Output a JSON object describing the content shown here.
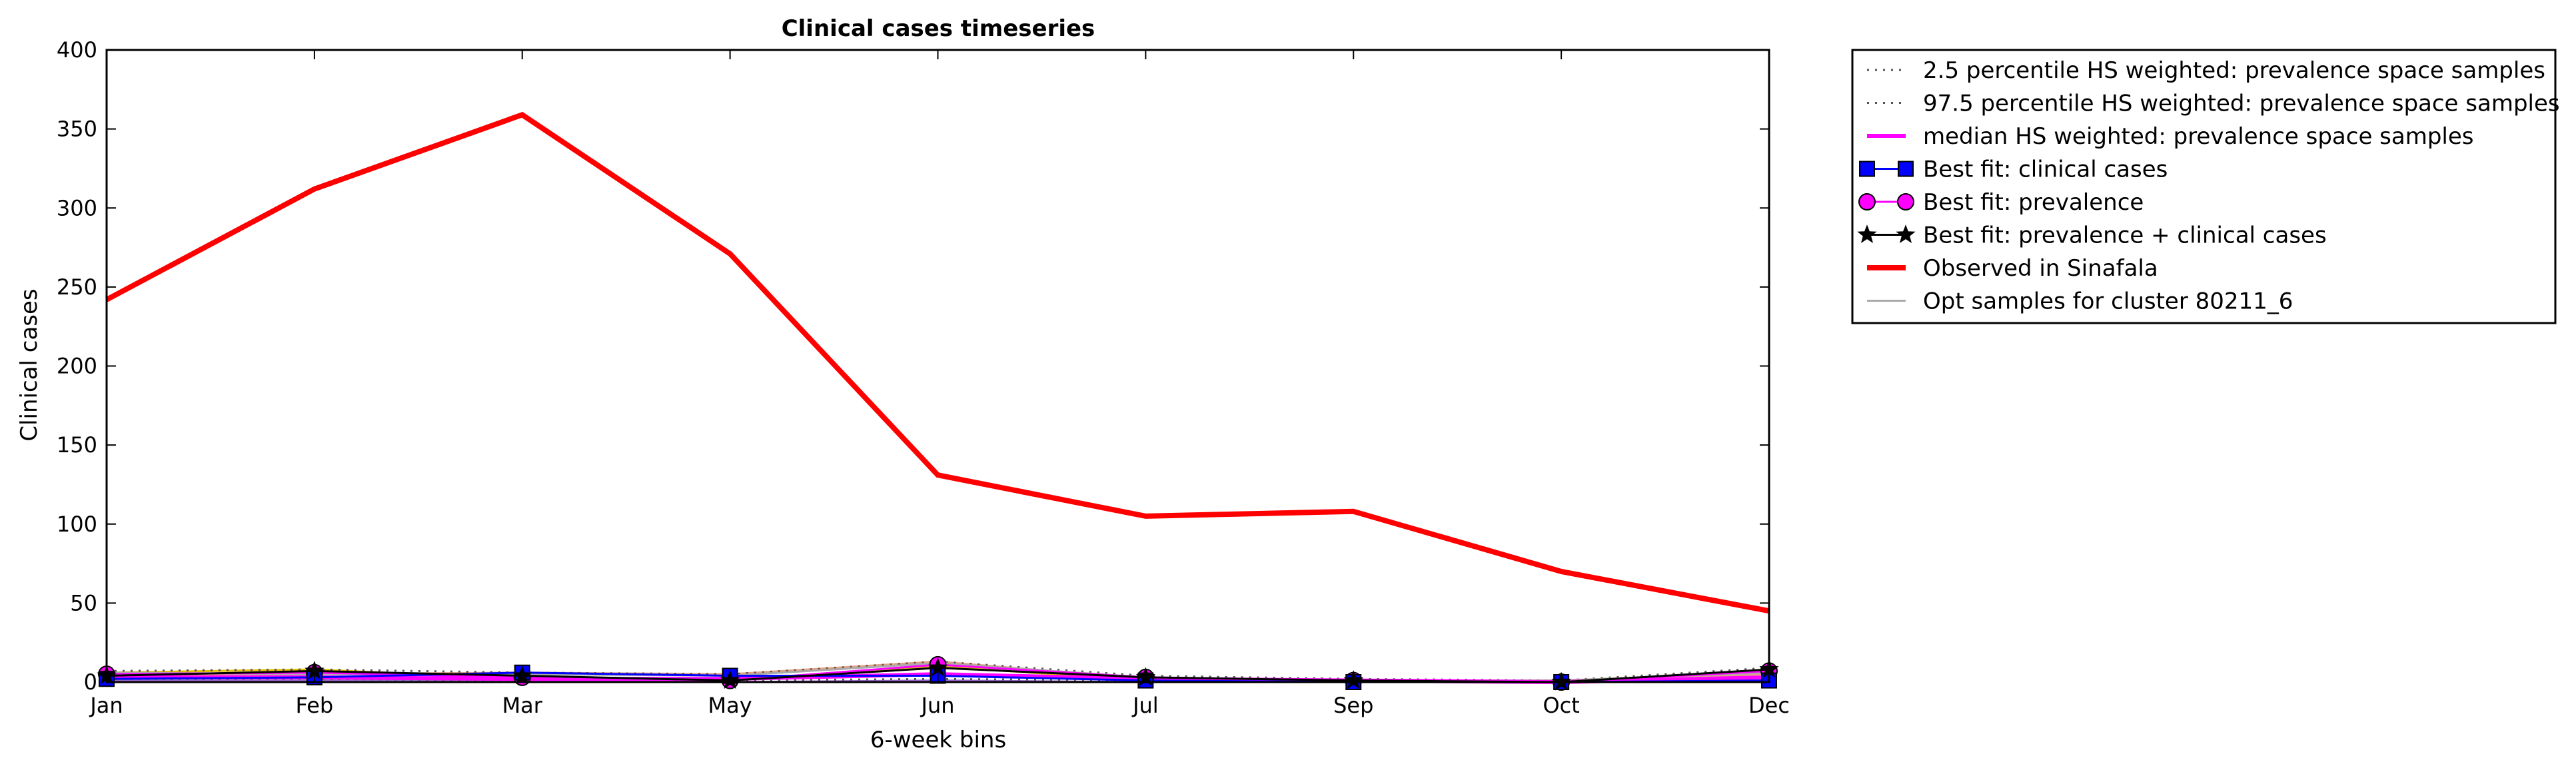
{
  "chart_data": {
    "type": "line",
    "title": "Clinical cases timeseries",
    "xlabel": "6-week bins",
    "ylabel": "Clinical cases",
    "categories": [
      "Jan",
      "Feb",
      "Mar",
      "May",
      "Jun",
      "Jul",
      "Sep",
      "Oct",
      "Dec"
    ],
    "ylim": [
      0,
      400
    ],
    "yticks": [
      0,
      50,
      100,
      150,
      200,
      250,
      300,
      350,
      400
    ],
    "grid": false,
    "legend_position": "outside-right-top",
    "series": [
      {
        "name": "2.5 percentile HS weighted: prevalence space samples",
        "style": "dotted",
        "color": "#555555",
        "values": [
          2,
          2,
          1,
          1,
          2,
          1,
          0,
          0,
          1
        ]
      },
      {
        "name": "97.5 percentile HS weighted: prevalence space samples",
        "style": "dotted",
        "color": "#555555",
        "values": [
          7,
          8,
          6,
          5,
          13,
          4,
          2,
          1,
          9
        ]
      },
      {
        "name": "median HS weighted: prevalence space samples",
        "style": "solid",
        "color": "#ff00ff",
        "values": [
          3,
          3,
          2,
          2,
          5,
          2,
          1,
          0,
          3
        ]
      },
      {
        "name": "Best fit: clinical cases",
        "style": "solid",
        "marker": "square",
        "color": "#0000ff",
        "values": [
          2,
          3,
          6,
          4,
          4,
          1,
          0,
          0,
          1
        ]
      },
      {
        "name": "Best fit: prevalence",
        "style": "solid",
        "marker": "circle",
        "color": "#ff00ff",
        "values": [
          5,
          6,
          3,
          1,
          11,
          3,
          1,
          0,
          7
        ]
      },
      {
        "name": "Best fit: prevalence + clinical cases",
        "style": "solid",
        "marker": "star",
        "color": "#000000",
        "values": [
          4,
          7,
          4,
          1,
          9,
          3,
          1,
          0,
          8
        ]
      },
      {
        "name": "Observed in Sinafala",
        "style": "solid",
        "color": "#ff0000",
        "values": [
          242,
          312,
          359,
          271,
          131,
          105,
          108,
          70,
          45
        ]
      },
      {
        "name": "Opt samples for cluster 80211_6",
        "style": "solid",
        "color": "#aaaaaa",
        "values": [
          6,
          5,
          5,
          4,
          12,
          3,
          1,
          1,
          6
        ]
      }
    ],
    "extra_sample_lines": [
      {
        "color": "#e6c200",
        "values": [
          6,
          8,
          2,
          1,
          10,
          1,
          0,
          1,
          6
        ]
      },
      {
        "color": "#e8a080",
        "values": [
          4,
          5,
          6,
          5,
          13,
          2,
          1,
          0,
          5
        ]
      },
      {
        "color": "#9966cc",
        "values": [
          1,
          1,
          1,
          0,
          1,
          0,
          0,
          0,
          1
        ]
      }
    ]
  }
}
